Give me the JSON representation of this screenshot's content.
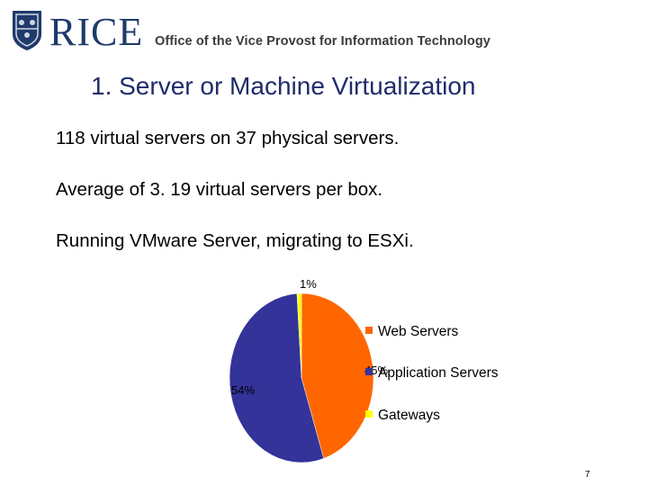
{
  "header": {
    "logo_text": "RICE",
    "office": "Office of the Vice Provost for Information Technology"
  },
  "slide": {
    "title": "1. Server or Machine Virtualization",
    "bullets": [
      "118 virtual servers on 37 physical servers.",
      "Average of 3. 19 virtual servers per box.",
      "Running VMware Server, migrating to ESXi."
    ],
    "page_number": "7"
  },
  "chart_data": {
    "type": "pie",
    "title": "",
    "slices": [
      {
        "label": "Web Servers",
        "value": 45,
        "display": "45%",
        "color": "#ff6600"
      },
      {
        "label": "Application Servers",
        "value": 54,
        "display": "54%",
        "color": "#333399"
      },
      {
        "label": "Gateways",
        "value": 1,
        "display": "1%",
        "color": "#ffff00"
      }
    ],
    "legend_position": "right"
  }
}
